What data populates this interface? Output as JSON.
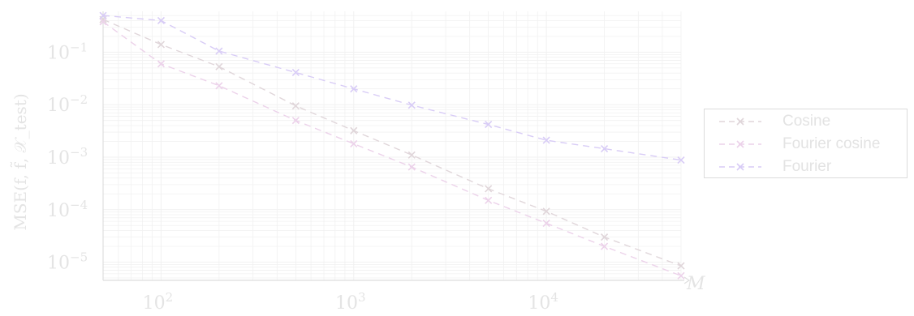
{
  "chart_data": {
    "type": "line",
    "xscale": "log",
    "yscale": "log",
    "xlabel": "M",
    "ylabel": "MSE(f, f̃, 𝒳_test)",
    "xlim": [
      50,
      50000
    ],
    "ylim": [
      4.5e-06,
      0.6
    ],
    "xticks": [
      {
        "value": 100,
        "base": "10",
        "exp": "2"
      },
      {
        "value": 1000,
        "base": "10",
        "exp": "3"
      },
      {
        "value": 10000,
        "base": "10",
        "exp": "4"
      }
    ],
    "yticks": [
      {
        "value": 0.1,
        "base": "10",
        "exp": "−1"
      },
      {
        "value": 0.01,
        "base": "10",
        "exp": "−2"
      },
      {
        "value": 0.001,
        "base": "10",
        "exp": "−3"
      },
      {
        "value": 0.0001,
        "base": "10",
        "exp": "−4"
      },
      {
        "value": 1e-05,
        "base": "10",
        "exp": "−5"
      }
    ],
    "grid": true,
    "legend_position": "right",
    "x": [
      50,
      100,
      200,
      500,
      1000,
      2000,
      5000,
      10000,
      20000,
      50000
    ],
    "series": [
      {
        "name": "Cosine",
        "color": "#e0d6da",
        "marker": "x",
        "values": [
          0.42,
          0.14,
          0.053,
          0.0095,
          0.0032,
          0.0011,
          0.00025,
          9.3e-05,
          3e-05,
          8.5e-06
        ]
      },
      {
        "name": "Fourier cosine",
        "color": "#ecd2ea",
        "marker": "x",
        "values": [
          0.38,
          0.06,
          0.023,
          0.005,
          0.0018,
          0.00065,
          0.00015,
          5.5e-05,
          2e-05,
          5.5e-06
        ]
      },
      {
        "name": "Fourier",
        "color": "#d8ccf6",
        "marker": "x",
        "values": [
          0.5,
          0.4,
          0.105,
          0.041,
          0.02,
          0.0098,
          0.0042,
          0.0021,
          0.00145,
          0.00088
        ]
      }
    ],
    "colors": {
      "axis": "#dedede",
      "grid": "#f1f1f1",
      "tick_text": "#e4e4e4",
      "legend_border": "#dcdcdc"
    }
  }
}
